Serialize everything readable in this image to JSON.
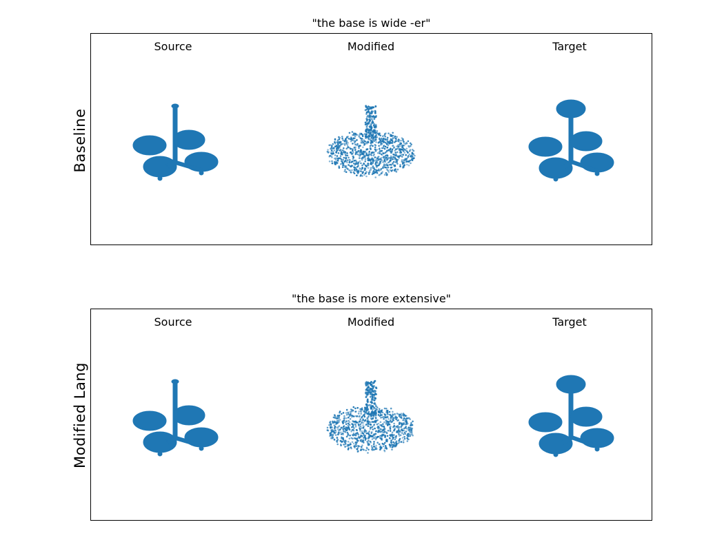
{
  "figure": {
    "panels": [
      {
        "title": "\"the base is wide -er\"",
        "row_label": "Baseline",
        "columns": [
          "Source",
          "Modified",
          "Target"
        ]
      },
      {
        "title": "\"the base is more extensive\"",
        "row_label": "Modified Lang",
        "columns": [
          "Source",
          "Modified",
          "Target"
        ]
      }
    ],
    "point_color": "#1f77b4"
  }
}
